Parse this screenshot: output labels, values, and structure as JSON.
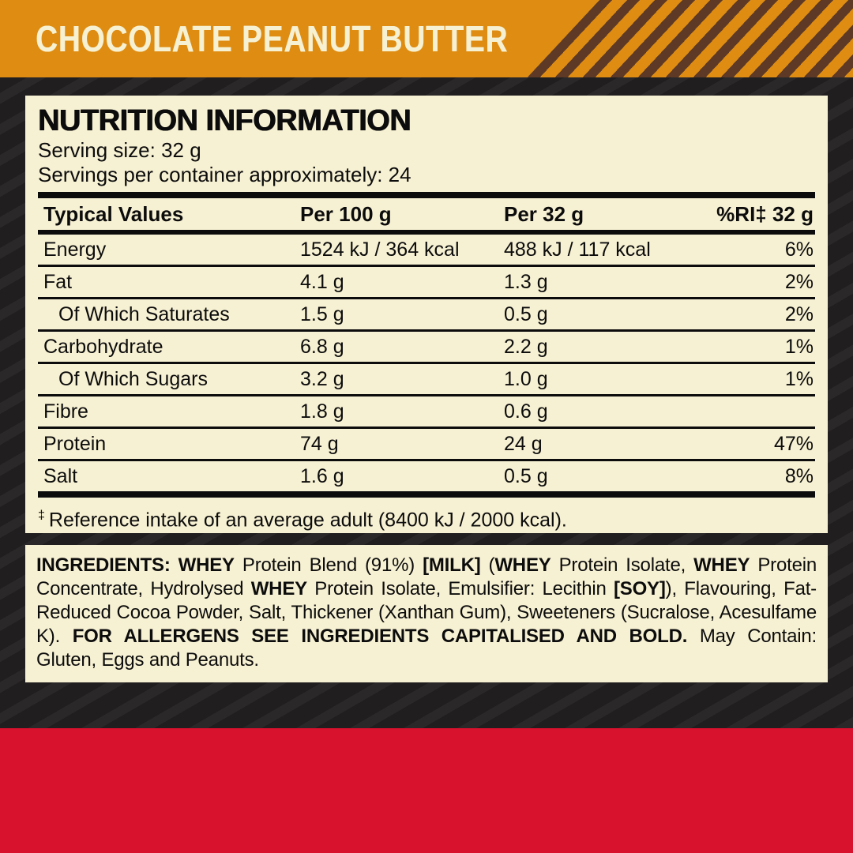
{
  "banner": {
    "title": "CHOCOLATE PEANUT BUTTER"
  },
  "colors": {
    "banner_orange": "#de8d12",
    "stripe_brown": "#5e3a26",
    "panel_cream": "#f7f1d3",
    "background_dark": "#232021",
    "red_band": "#d8112d",
    "text_black": "#0c0c0c"
  },
  "nutrition": {
    "heading": "NUTRITION INFORMATION",
    "serving_size": "Serving size: 32 g",
    "servings_per_container": "Servings per container approximately: 24",
    "table": {
      "columns": [
        "Typical Values",
        "Per 100 g",
        "Per 32 g",
        "%RI‡ 32 g"
      ],
      "rows": [
        {
          "name": "Energy",
          "per_100g": "1524 kJ / 364 kcal",
          "per_32g": "488 kJ / 117 kcal",
          "ri": "6%",
          "indent": false
        },
        {
          "name": "Fat",
          "per_100g": "4.1 g",
          "per_32g": "1.3 g",
          "ri": "2%",
          "indent": false
        },
        {
          "name": "Of Which Saturates",
          "per_100g": "1.5 g",
          "per_32g": "0.5 g",
          "ri": "2%",
          "indent": true
        },
        {
          "name": "Carbohydrate",
          "per_100g": "6.8 g",
          "per_32g": "2.2 g",
          "ri": "1%",
          "indent": false
        },
        {
          "name": "Of Which Sugars",
          "per_100g": "3.2 g",
          "per_32g": "1.0 g",
          "ri": "1%",
          "indent": true
        },
        {
          "name": "Fibre",
          "per_100g": "1.8 g",
          "per_32g": "0.6 g",
          "ri": "",
          "indent": false
        },
        {
          "name": "Protein",
          "per_100g": "74 g",
          "per_32g": "24 g",
          "ri": "47%",
          "indent": false
        },
        {
          "name": "Salt",
          "per_100g": "1.6 g",
          "per_32g": "0.5 g",
          "ri": "8%",
          "indent": false
        }
      ]
    },
    "footnote_symbol": "‡",
    "footnote_text": "Reference intake of an average adult (8400 kJ / 2000 kcal)."
  },
  "ingredients": {
    "segments": [
      {
        "text": "INGREDIENTS: ",
        "bold": true
      },
      {
        "text": "WHEY",
        "bold": true
      },
      {
        "text": " Protein Blend (91%) ",
        "bold": false
      },
      {
        "text": "[MILK]",
        "bold": true
      },
      {
        "text": " (",
        "bold": false
      },
      {
        "text": "WHEY",
        "bold": true
      },
      {
        "text": " Protein Isolate, ",
        "bold": false
      },
      {
        "text": "WHEY",
        "bold": true
      },
      {
        "text": " Protein Concentrate, Hydrolysed ",
        "bold": false
      },
      {
        "text": "WHEY",
        "bold": true
      },
      {
        "text": " Protein Isolate, Emulsifier: Lecithin ",
        "bold": false
      },
      {
        "text": "[SOY]",
        "bold": true
      },
      {
        "text": "), Flavouring, Fat-Reduced Cocoa Powder, Salt, Thickener (Xanthan Gum), Sweeteners (Sucralose, Acesulfame K). ",
        "bold": false
      },
      {
        "text": "FOR ALLERGENS SEE INGREDIENTS CAPITALISED AND BOLD.",
        "bold": true
      },
      {
        "text": " May Contain: Gluten, Eggs and Peanuts.",
        "bold": false
      }
    ]
  }
}
